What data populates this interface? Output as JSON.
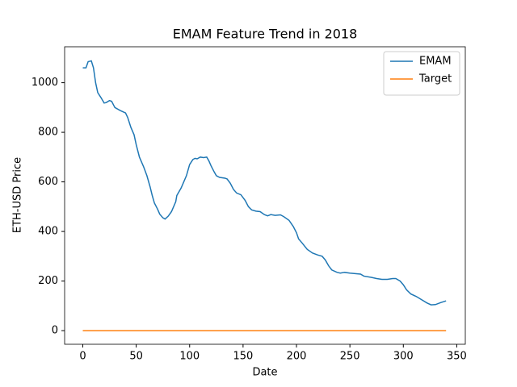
{
  "chart_data": {
    "type": "line",
    "title": "EMAM Feature Trend in 2018",
    "x_label": "Date",
    "y_label": "ETH-USD Price",
    "xlim": [
      -17,
      358
    ],
    "ylim": [
      -55,
      1145
    ],
    "xticks": [
      0,
      50,
      100,
      150,
      200,
      250,
      300,
      350
    ],
    "yticks": [
      0,
      200,
      400,
      600,
      800,
      1000
    ],
    "grid": false,
    "legend": "upper right",
    "series": [
      {
        "name": "EMAM",
        "color": "#1f77b4",
        "x": [
          0,
          3,
          5,
          8,
          10,
          12,
          14,
          17,
          20,
          22,
          25,
          27,
          30,
          35,
          40,
          42,
          45,
          48,
          50,
          53,
          57,
          60,
          63,
          65,
          67,
          70,
          72,
          75,
          77,
          80,
          83,
          87,
          88,
          92,
          95,
          97,
          100,
          103,
          105,
          107,
          110,
          113,
          116,
          118,
          120,
          123,
          125,
          128,
          133,
          135,
          138,
          141,
          144,
          148,
          152,
          155,
          158,
          162,
          166,
          170,
          173,
          176,
          180,
          185,
          188,
          193,
          197,
          200,
          202,
          205,
          210,
          215,
          220,
          224,
          227,
          230,
          233,
          238,
          241,
          245,
          250,
          255,
          260,
          263,
          270,
          275,
          280,
          285,
          290,
          293,
          297,
          300,
          303,
          307,
          312,
          317,
          322,
          326,
          330,
          335,
          340
        ],
        "values": [
          1060,
          1060,
          1085,
          1088,
          1060,
          1000,
          960,
          940,
          918,
          920,
          928,
          925,
          900,
          888,
          878,
          860,
          820,
          790,
          750,
          700,
          660,
          625,
          580,
          545,
          515,
          490,
          470,
          455,
          450,
          462,
          480,
          520,
          545,
          575,
          605,
          625,
          670,
          690,
          695,
          693,
          700,
          698,
          700,
          685,
          665,
          640,
          625,
          618,
          615,
          612,
          595,
          570,
          555,
          548,
          525,
          500,
          487,
          482,
          480,
          468,
          463,
          468,
          465,
          467,
          460,
          445,
          420,
          395,
          370,
          355,
          328,
          313,
          305,
          300,
          285,
          262,
          245,
          235,
          232,
          235,
          232,
          230,
          228,
          220,
          215,
          210,
          207,
          207,
          210,
          210,
          200,
          185,
          165,
          148,
          138,
          125,
          112,
          104,
          105,
          113,
          120
        ]
      },
      {
        "name": "Target",
        "color": "#ff7f0e",
        "x": [
          0,
          340
        ],
        "values": [
          0,
          0
        ]
      }
    ]
  }
}
